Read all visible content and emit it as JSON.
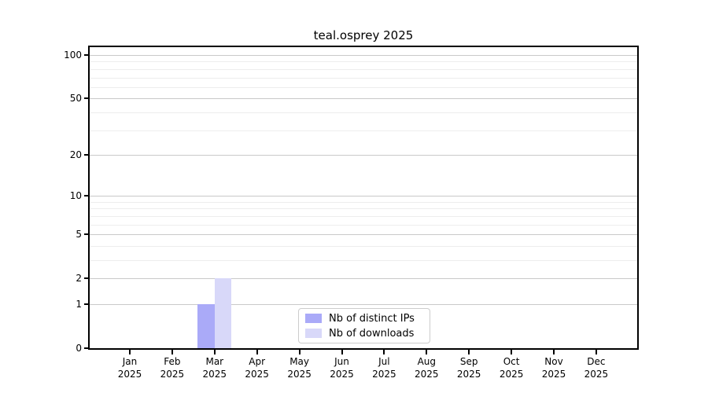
{
  "chart_data": {
    "type": "bar",
    "title": "teal.osprey 2025",
    "categories": [
      "Jan 2025",
      "Feb 2025",
      "Mar 2025",
      "Apr 2025",
      "May 2025",
      "Jun 2025",
      "Jul 2025",
      "Aug 2025",
      "Sep 2025",
      "Oct 2025",
      "Nov 2025",
      "Dec 2025"
    ],
    "series": [
      {
        "name": "Nb of distinct IPs",
        "color": "#aaaaf8",
        "values": [
          0,
          0,
          1,
          0,
          0,
          0,
          0,
          0,
          0,
          0,
          0,
          0
        ]
      },
      {
        "name": "Nb of downloads",
        "color": "#d8d8f9",
        "values": [
          0,
          0,
          2,
          0,
          0,
          0,
          0,
          0,
          0,
          0,
          0,
          0
        ]
      }
    ],
    "xlabel": "",
    "ylabel": "",
    "yscale": "log1p",
    "ylim": [
      0,
      115
    ],
    "y_tick_labels": [
      0,
      1,
      2,
      5,
      10,
      20,
      50,
      100
    ],
    "y_minor_gridlines": [
      3,
      4,
      6,
      7,
      8,
      9,
      30,
      40,
      60,
      70,
      80,
      90
    ],
    "grid": true,
    "legend_position": "lower center",
    "colors": {
      "major_grid": "#c9c9c9",
      "minor_grid": "#ededed",
      "axis": "#000000",
      "background": "#ffffff"
    }
  }
}
